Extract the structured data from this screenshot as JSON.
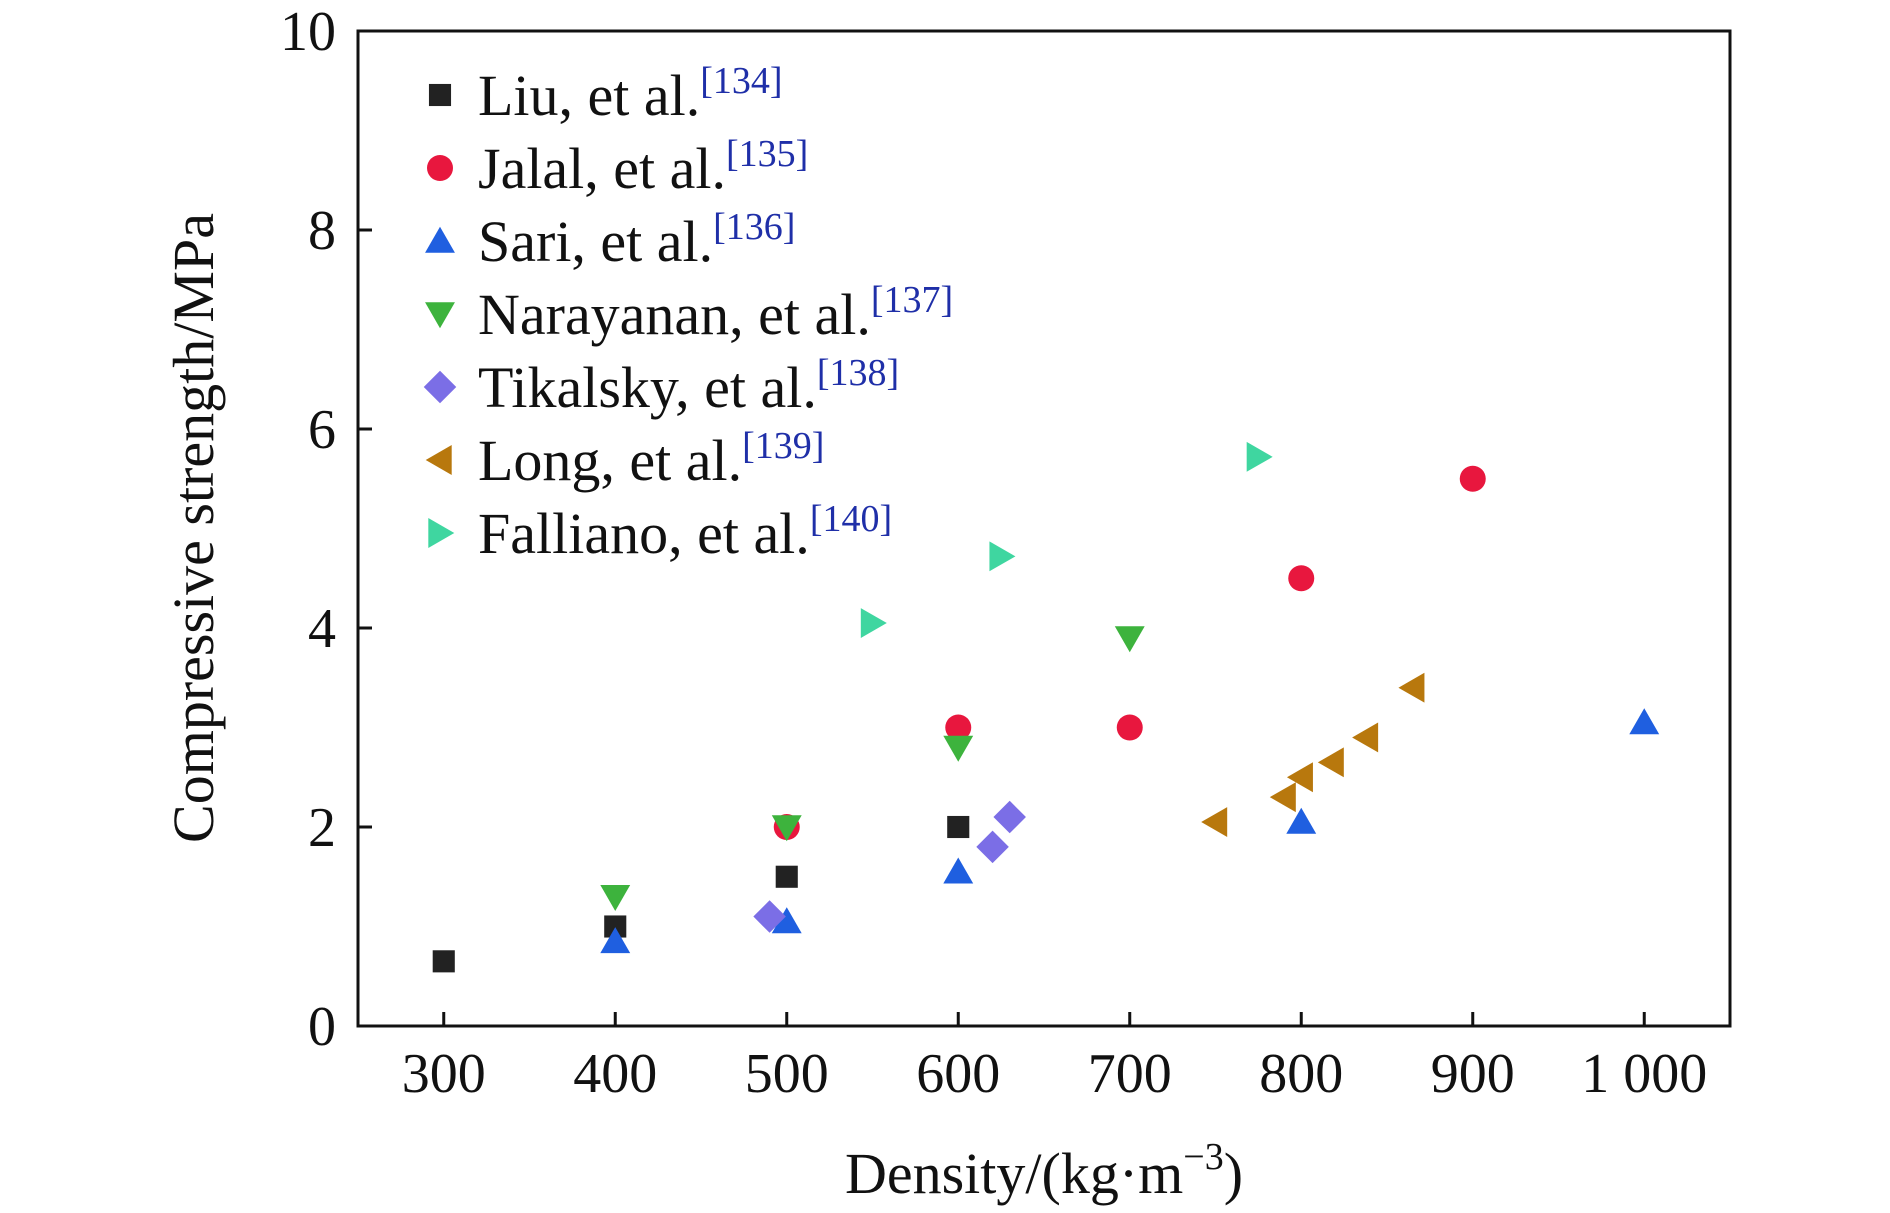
{
  "chart_data": {
    "type": "scatter",
    "xlabel": "Density/(kg·m",
    "xlabel_sup": "−3",
    "xlabel_close": ")",
    "ylabel": "Compressive strength/MPa",
    "xlim": [
      250,
      1050
    ],
    "ylim": [
      0,
      10
    ],
    "xticks": [
      300,
      400,
      500,
      600,
      700,
      800,
      900,
      1000
    ],
    "xtick_labels": [
      "300",
      "400",
      "500",
      "600",
      "700",
      "800",
      "900",
      "1 000"
    ],
    "yticks": [
      0,
      2,
      4,
      6,
      8,
      10
    ],
    "ytick_labels": [
      "0",
      "2",
      "4",
      "6",
      "8",
      "10"
    ],
    "grid": false,
    "legend_position": "top-left",
    "series": [
      {
        "name": "Liu, et al.",
        "ref": "[134]",
        "marker": "square",
        "color": "#222222",
        "x": [
          300,
          400,
          500,
          600
        ],
        "y": [
          0.65,
          1.0,
          1.5,
          2.0
        ]
      },
      {
        "name": "Jalal, et al.",
        "ref": "[135]",
        "marker": "circle",
        "color": "#e8173e",
        "x": [
          500,
          600,
          700,
          800,
          900
        ],
        "y": [
          2.0,
          3.0,
          3.0,
          4.5,
          5.5
        ]
      },
      {
        "name": "Sari, et al.",
        "ref": "[136]",
        "marker": "triangle-up",
        "color": "#1f5fe0",
        "x": [
          400,
          500,
          600,
          800,
          1000
        ],
        "y": [
          0.85,
          1.05,
          1.55,
          2.05,
          3.05
        ]
      },
      {
        "name": "Narayanan, et al.",
        "ref": "[137]",
        "marker": "triangle-down",
        "color": "#3db33d",
        "x": [
          400,
          500,
          600,
          700
        ],
        "y": [
          1.3,
          2.0,
          2.8,
          3.9
        ]
      },
      {
        "name": "Tikalsky, et al.",
        "ref": "[138]",
        "marker": "diamond",
        "color": "#7b6ee6",
        "x": [
          490,
          620,
          630
        ],
        "y": [
          1.1,
          1.8,
          2.1
        ]
      },
      {
        "name": "Long, et al.",
        "ref": "[139]",
        "marker": "triangle-left",
        "color": "#b8780d",
        "x": [
          750,
          790,
          800,
          818,
          838,
          865
        ],
        "y": [
          2.05,
          2.3,
          2.5,
          2.65,
          2.9,
          3.4
        ]
      },
      {
        "name": "Falliano, et al.",
        "ref": "[140]",
        "marker": "triangle-right",
        "color": "#3fd6a0",
        "x": [
          550,
          625,
          775
        ],
        "y": [
          4.05,
          4.72,
          5.72
        ]
      }
    ]
  }
}
